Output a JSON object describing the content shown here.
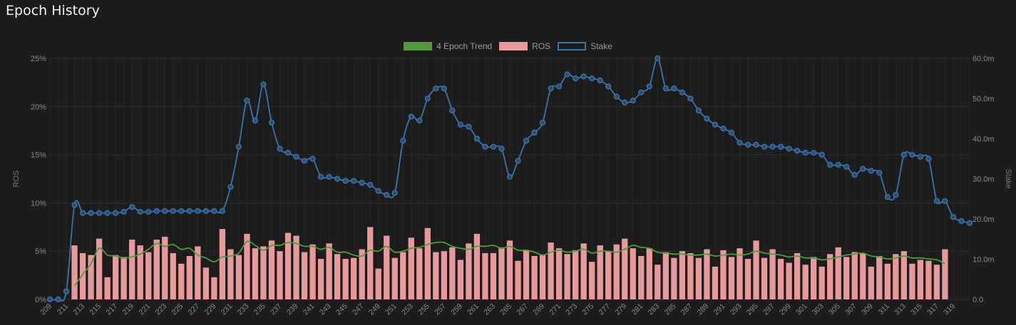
{
  "page": {
    "title": "Epoch History"
  },
  "colors": {
    "trend": "#4f9a3b",
    "ros": "#e89a9a",
    "stake": "#3c74ad",
    "grid": "#2c2c2c",
    "text": "#8a8a8a"
  },
  "chart_data": {
    "type": "bar",
    "title": "",
    "legend": [
      {
        "label": "4 Epoch Trend",
        "kind": "line",
        "color": "#4f9a3b"
      },
      {
        "label": "ROS",
        "kind": "bar",
        "color": "#e89a9a"
      },
      {
        "label": "Stake",
        "kind": "line-outline",
        "color": "#3c74ad"
      }
    ],
    "legend_position": "top-center",
    "y_left": {
      "label": "ROS",
      "min": 0,
      "max": 25,
      "ticks": [
        "0%",
        "5%",
        "10%",
        "15%",
        "20%",
        "25%"
      ]
    },
    "y_right": {
      "label": "Stake",
      "min": 0,
      "max": 60,
      "ticks": [
        "0.0",
        "10.0m",
        "20.0m",
        "30.0m",
        "40.0m",
        "50.0m",
        "60.0m"
      ]
    },
    "x_start": 209,
    "x_end": 319,
    "x_tick_labels": [
      "209",
      "211",
      "213",
      "215",
      "217",
      "219",
      "221",
      "223",
      "225",
      "227",
      "229",
      "231",
      "233",
      "235",
      "237",
      "239",
      "241",
      "243",
      "245",
      "247",
      "249",
      "251",
      "253",
      "255",
      "257",
      "259",
      "261",
      "263",
      "265",
      "267",
      "269",
      "271",
      "273",
      "275",
      "277",
      "279",
      "281",
      "283",
      "285",
      "287",
      "289",
      "291",
      "293",
      "295",
      "297",
      "299",
      "301",
      "303",
      "305",
      "307",
      "309",
      "311",
      "313",
      "315",
      "317",
      "319"
    ],
    "ros": [
      0,
      0,
      0,
      5.6,
      4.8,
      4.6,
      6.3,
      2.3,
      4.6,
      4.4,
      6.2,
      5.6,
      4.9,
      6.2,
      6.5,
      4.8,
      3.7,
      4.5,
      5.5,
      3.3,
      2.3,
      7.3,
      5.2,
      4.6,
      6.8,
      5.3,
      5.5,
      6.1,
      5.0,
      6.9,
      6.6,
      4.9,
      5.7,
      4.2,
      5.8,
      4.7,
      4.2,
      4.3,
      5.2,
      7.5,
      3.2,
      6.6,
      4.3,
      4.9,
      6.4,
      5.3,
      7.4,
      4.9,
      5.0,
      5.4,
      4.1,
      5.8,
      6.8,
      4.8,
      4.8,
      5.4,
      6.1,
      4.0,
      5.1,
      4.5,
      4.6,
      5.9,
      5.3,
      4.7,
      5.1,
      5.8,
      3.9,
      5.6,
      5.0,
      5.7,
      6.3,
      5.3,
      4.5,
      5.3,
      3.6,
      4.9,
      4.3,
      5.0,
      4.8,
      4.3,
      5.2,
      3.4,
      5.1,
      4.4,
      5.3,
      4.2,
      6.1,
      4.3,
      5.2,
      4.2,
      3.8,
      4.8,
      3.6,
      4.4,
      3.4,
      4.7,
      5.4,
      4.4,
      4.9,
      4.8,
      3.4,
      4.5,
      3.7,
      4.7,
      5.0,
      3.7,
      4.1,
      4.0,
      3.6,
      5.2
    ],
    "trend": [
      null,
      null,
      null,
      1.4,
      2.6,
      3.7,
      5.3,
      4.6,
      4.5,
      4.3,
      4.4,
      4.7,
      5.2,
      5.8,
      5.5,
      5.7,
      5.2,
      5.3,
      4.6,
      4.3,
      3.9,
      4.4,
      4.5,
      4.8,
      6.0,
      5.6,
      5.1,
      5.6,
      5.6,
      5.9,
      5.8,
      5.5,
      5.5,
      5.2,
      5.4,
      4.9,
      4.9,
      4.6,
      4.5,
      5.1,
      5.0,
      5.5,
      4.9,
      5.0,
      5.3,
      5.4,
      5.7,
      5.9,
      5.9,
      5.5,
      5.3,
      5.2,
      5.5,
      5.5,
      5.6,
      5.3,
      5.5,
      5.1,
      5.1,
      4.9,
      4.6,
      4.9,
      5.1,
      4.9,
      5.0,
      5.2,
      4.8,
      5.0,
      5.0,
      4.9,
      5.2,
      5.6,
      5.4,
      5.3,
      4.9,
      4.8,
      4.7,
      4.7,
      4.6,
      4.6,
      4.7,
      4.5,
      4.6,
      4.7,
      4.6,
      4.7,
      5.0,
      4.8,
      4.7,
      4.6,
      4.4,
      4.5,
      4.3,
      4.3,
      4.1,
      4.2,
      4.4,
      4.6,
      4.7,
      4.8,
      4.5,
      4.4,
      4.2,
      4.3,
      4.5,
      4.3,
      4.3,
      4.2,
      4.1,
      3.7
    ],
    "stake": [
      0,
      0,
      2,
      23.5,
      21.5,
      21.5,
      21.5,
      21.5,
      21.5,
      21.8,
      23,
      21.8,
      21.8,
      22,
      22,
      22,
      22,
      22,
      22,
      22,
      22,
      22,
      28,
      38,
      49.5,
      44.5,
      53.5,
      44,
      37.5,
      36.5,
      35.5,
      34.5,
      35,
      30.5,
      30.5,
      30,
      29.5,
      29.5,
      29,
      28.5,
      27,
      26,
      26.5,
      39.5,
      45.5,
      44.5,
      50,
      52.5,
      52.5,
      47,
      43.5,
      43,
      40,
      38,
      38,
      37.5,
      30.5,
      34.5,
      39.5,
      41.5,
      44,
      52.5,
      53,
      56,
      55,
      55.5,
      55,
      54.5,
      53,
      50.5,
      49,
      49.5,
      51.5,
      53,
      60,
      52.5,
      52.5,
      51.5,
      50,
      47,
      45,
      43.5,
      42.5,
      41.5,
      39,
      38.5,
      38.5,
      38,
      38,
      38,
      37.5,
      37,
      36.5,
      36.5,
      36,
      33.5,
      33.5,
      33,
      31,
      32.5,
      32,
      31.5,
      25.5,
      26,
      36,
      36,
      35.5,
      35,
      24.5,
      24.5,
      20.5,
      19.5,
      19
    ]
  }
}
